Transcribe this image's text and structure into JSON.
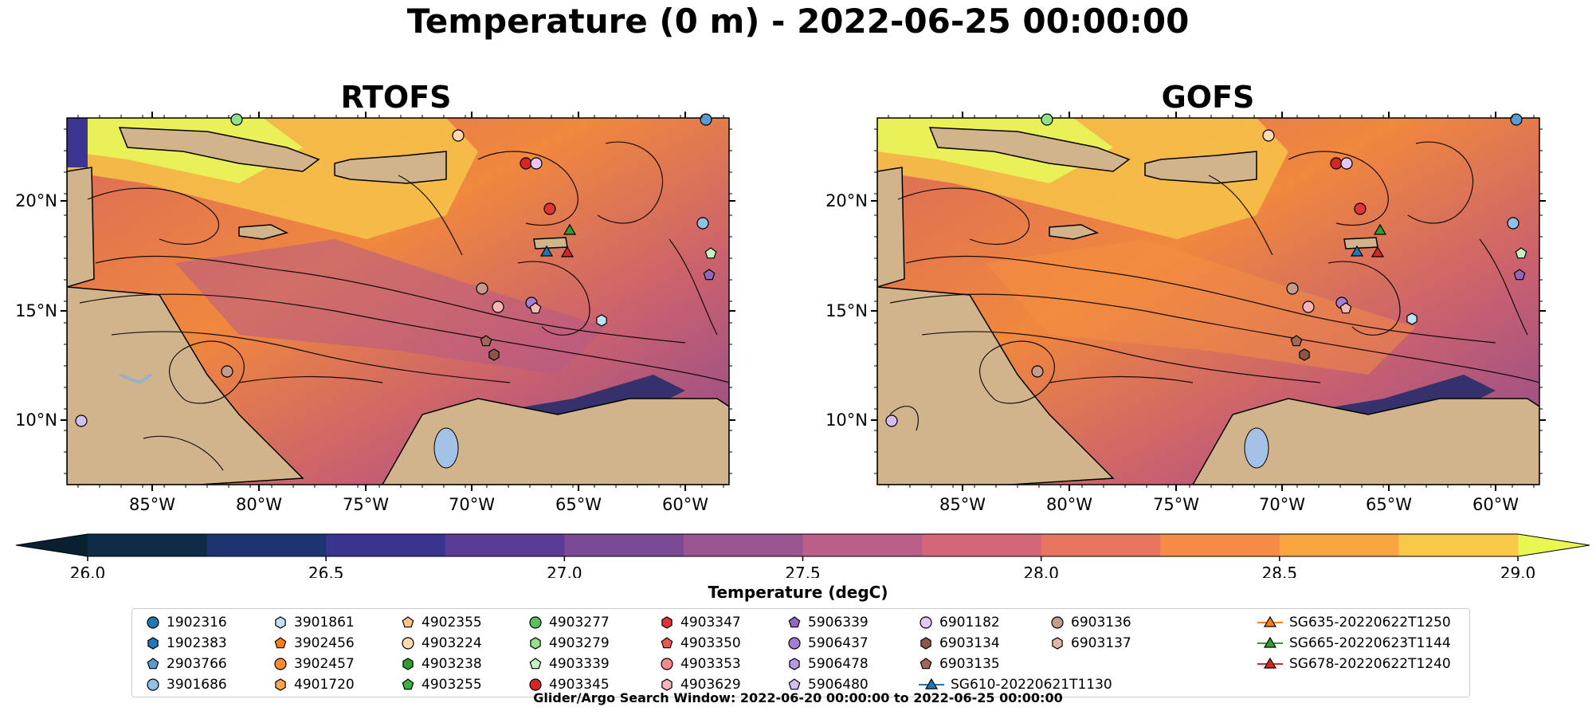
{
  "title": "Temperature (0 m) - 2022-06-25 00:00:00",
  "maps": [
    {
      "title": "RTOFS"
    },
    {
      "title": "GOFS"
    }
  ],
  "lat_labels": [
    "20°N",
    "15°N",
    "10°N"
  ],
  "lon_labels": [
    "85°W",
    "80°W",
    "75°W",
    "70°W",
    "65°W",
    "60°W"
  ],
  "colorbar": {
    "label": "Temperature (degC)",
    "ticks": [
      "26.0",
      "26.5",
      "27.0",
      "27.5",
      "28.0",
      "28.5",
      "29.0"
    ],
    "min": 26.0,
    "max": 29.0,
    "colors": [
      "#0f2c45",
      "#1a3470",
      "#3a3390",
      "#5a3c96",
      "#7a4a94",
      "#9a5690",
      "#ba5f88",
      "#d4667a",
      "#e87560",
      "#f68b48",
      "#f9a640",
      "#f8c848"
    ],
    "extend_low_color": "#082030",
    "extend_high_color": "#e8f850"
  },
  "legend": {
    "columns": [
      [
        {
          "label": "1902316",
          "marker": "circle",
          "color": "#1f77b4"
        },
        {
          "label": "1902383",
          "marker": "hexagon",
          "color": "#1f77b4"
        },
        {
          "label": "2903766",
          "marker": "pentagon",
          "color": "#5a9bd4"
        },
        {
          "label": "3901686",
          "marker": "circle",
          "color": "#8fc1e8"
        }
      ],
      [
        {
          "label": "3901861",
          "marker": "hexagon",
          "color": "#bfe0f5"
        },
        {
          "label": "3902456",
          "marker": "pentagon",
          "color": "#ff7f0e"
        },
        {
          "label": "3902457",
          "marker": "circle",
          "color": "#ff8c2e"
        },
        {
          "label": "4901720",
          "marker": "hexagon",
          "color": "#ffa64d"
        }
      ],
      [
        {
          "label": "4902355",
          "marker": "pentagon",
          "color": "#ffc28a"
        },
        {
          "label": "4903224",
          "marker": "circle",
          "color": "#ffd9b3"
        },
        {
          "label": "4903238",
          "marker": "hexagon",
          "color": "#2ca02c"
        },
        {
          "label": "4903255",
          "marker": "pentagon",
          "color": "#3cb043"
        }
      ],
      [
        {
          "label": "4903277",
          "marker": "circle",
          "color": "#5cc05c"
        },
        {
          "label": "4903279",
          "marker": "hexagon",
          "color": "#98df8a"
        },
        {
          "label": "4903339",
          "marker": "pentagon",
          "color": "#c8f0c0"
        },
        {
          "label": "4903345",
          "marker": "circle",
          "color": "#d62728"
        }
      ],
      [
        {
          "label": "4903347",
          "marker": "hexagon",
          "color": "#e03535"
        },
        {
          "label": "4903350",
          "marker": "pentagon",
          "color": "#ee5555"
        },
        {
          "label": "4903353",
          "marker": "circle",
          "color": "#f28c8c"
        },
        {
          "label": "4903629",
          "marker": "hexagon",
          "color": "#f7b6b6"
        }
      ],
      [
        {
          "label": "5906339",
          "marker": "pentagon",
          "color": "#9467bd"
        },
        {
          "label": "5906437",
          "marker": "circle",
          "color": "#a77dd0"
        },
        {
          "label": "5906478",
          "marker": "hexagon",
          "color": "#bb99e0"
        },
        {
          "label": "5906480",
          "marker": "pentagon",
          "color": "#d3bff0"
        }
      ],
      [
        {
          "label": "6901182",
          "marker": "circle",
          "color": "#e5c8f7"
        },
        {
          "label": "6903134",
          "marker": "hexagon",
          "color": "#8c564b"
        },
        {
          "label": "6903135",
          "marker": "pentagon",
          "color": "#a0685a"
        },
        {
          "label": "SG610-20220621T1130",
          "marker": "triangle-line",
          "color": "#1f77b4"
        }
      ],
      [
        {
          "label": "6903136",
          "marker": "circle",
          "color": "#c49c8a"
        },
        {
          "label": "6903137",
          "marker": "hexagon",
          "color": "#e0b8a8"
        }
      ],
      [
        {
          "label": "SG635-20220622T1250",
          "marker": "triangle-line",
          "color": "#ff7f0e"
        },
        {
          "label": "SG665-20220623T1144",
          "marker": "triangle-line",
          "color": "#2ca02c"
        },
        {
          "label": "SG678-20220622T1240",
          "marker": "triangle-line",
          "color": "#d62728"
        }
      ]
    ]
  },
  "search_window": "Glider/Argo Search Window: 2022-06-20 00:00:00 to 2022-06-25 00:00:00"
}
